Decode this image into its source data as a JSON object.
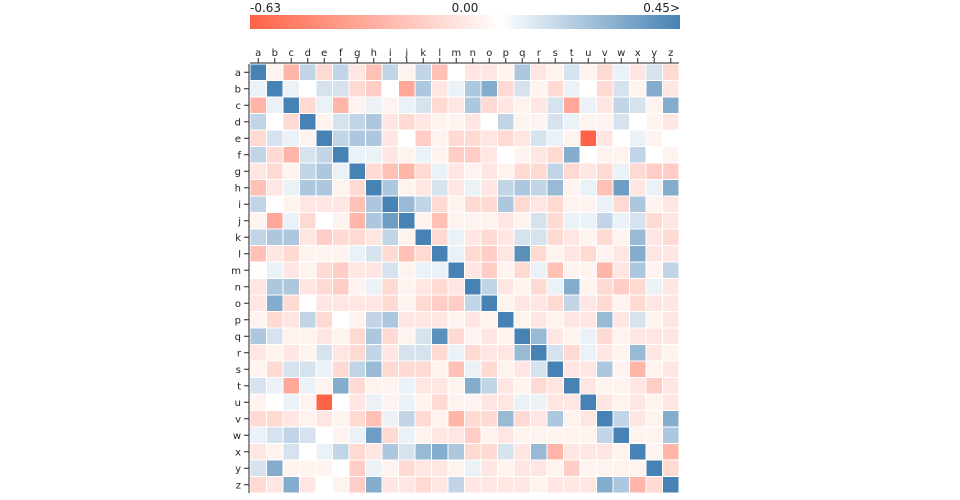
{
  "chart_data": {
    "type": "heatmap",
    "legend": {
      "min_label": "-0.63",
      "mid_label": "0.00",
      "max_label": "0.45>",
      "min": -0.63,
      "max": 0.45
    },
    "colors": {
      "negative": "#ff6347",
      "zero": "#ffffff",
      "positive": "#4682b4",
      "cell_border": "#ffffff",
      "axis": "#222222"
    },
    "x_labels": [
      "a",
      "b",
      "c",
      "d",
      "e",
      "f",
      "g",
      "h",
      "i",
      "j",
      "k",
      "l",
      "m",
      "n",
      "o",
      "p",
      "q",
      "r",
      "s",
      "t",
      "u",
      "v",
      "w",
      "x",
      "y",
      "z"
    ],
    "y_labels": [
      "a",
      "b",
      "c",
      "d",
      "e",
      "f",
      "g",
      "h",
      "i",
      "j",
      "k",
      "l",
      "m",
      "n",
      "o",
      "p",
      "q",
      "r",
      "s",
      "t",
      "u",
      "v",
      "w",
      "x",
      "y",
      "z"
    ],
    "values": [
      [
        0.45,
        -0.05,
        -0.3,
        0.15,
        -0.15,
        0.15,
        -0.1,
        -0.25,
        0.15,
        -0.05,
        0.15,
        -0.25,
        0.0,
        -0.1,
        -0.1,
        -0.05,
        0.2,
        -0.1,
        -0.05,
        0.1,
        -0.05,
        -0.15,
        0.05,
        -0.1,
        0.1,
        -0.15
      ],
      [
        0.05,
        0.45,
        0.05,
        0.0,
        0.1,
        0.1,
        -0.15,
        -0.2,
        0.0,
        -0.35,
        0.2,
        -0.1,
        0.05,
        0.2,
        0.3,
        -0.15,
        0.1,
        -0.05,
        -0.15,
        0.05,
        0.0,
        -0.15,
        0.1,
        -0.05,
        0.3,
        -0.1
      ],
      [
        -0.3,
        0.05,
        0.45,
        -0.15,
        0.05,
        -0.3,
        -0.05,
        0.05,
        -0.05,
        0.05,
        0.1,
        -0.15,
        -0.1,
        0.2,
        -0.15,
        -0.1,
        -0.05,
        -0.1,
        0.1,
        -0.35,
        0.05,
        -0.1,
        0.15,
        0.1,
        -0.05,
        0.3
      ],
      [
        0.15,
        0.0,
        -0.15,
        0.45,
        -0.05,
        0.1,
        0.15,
        0.2,
        -0.1,
        -0.15,
        -0.1,
        -0.05,
        -0.05,
        -0.1,
        0.0,
        0.15,
        -0.05,
        -0.05,
        0.1,
        0.05,
        -0.05,
        -0.05,
        0.1,
        0.0,
        -0.05,
        -0.1
      ],
      [
        -0.15,
        0.1,
        0.05,
        -0.05,
        0.45,
        0.15,
        0.2,
        0.2,
        -0.1,
        0.0,
        -0.2,
        -0.05,
        -0.15,
        -0.15,
        -0.1,
        -0.15,
        -0.1,
        0.1,
        0.05,
        -0.05,
        -0.63,
        -0.1,
        0.0,
        0.05,
        -0.05,
        0.0
      ],
      [
        0.15,
        -0.15,
        -0.3,
        0.1,
        0.15,
        0.45,
        0.05,
        0.05,
        -0.1,
        -0.05,
        0.05,
        -0.05,
        -0.2,
        -0.2,
        -0.1,
        0.0,
        -0.05,
        -0.1,
        -0.15,
        0.3,
        0.0,
        -0.05,
        -0.05,
        0.15,
        0.0,
        -0.05
      ],
      [
        -0.1,
        -0.15,
        -0.05,
        0.15,
        0.2,
        0.05,
        0.45,
        -0.15,
        -0.25,
        -0.3,
        -0.15,
        0.05,
        -0.1,
        -0.05,
        -0.1,
        -0.05,
        -0.15,
        -0.15,
        0.15,
        -0.15,
        -0.1,
        -0.15,
        0.05,
        -0.15,
        -0.2,
        -0.2
      ],
      [
        -0.25,
        -0.1,
        0.05,
        0.2,
        0.2,
        -0.05,
        -0.15,
        0.45,
        0.2,
        -0.05,
        -0.1,
        0.1,
        -0.1,
        0.05,
        -0.1,
        0.15,
        0.2,
        0.15,
        0.25,
        -0.05,
        0.05,
        -0.25,
        0.35,
        -0.1,
        0.05,
        0.3
      ],
      [
        0.15,
        0.0,
        -0.05,
        -0.1,
        -0.1,
        -0.1,
        -0.25,
        0.2,
        0.45,
        0.25,
        0.15,
        -0.15,
        -0.05,
        -0.15,
        -0.15,
        0.2,
        -0.15,
        -0.1,
        -0.15,
        -0.05,
        -0.05,
        0.05,
        -0.15,
        0.2,
        -0.05,
        -0.1
      ],
      [
        -0.05,
        -0.35,
        0.05,
        -0.15,
        0.0,
        -0.05,
        -0.3,
        0.2,
        0.35,
        0.45,
        -0.05,
        -0.25,
        -0.05,
        -0.05,
        -0.05,
        -0.1,
        -0.05,
        0.1,
        -0.15,
        0.05,
        0.05,
        0.15,
        0.05,
        0.1,
        -0.15,
        -0.1
      ],
      [
        0.15,
        0.2,
        0.2,
        -0.1,
        -0.2,
        -0.15,
        -0.15,
        -0.1,
        0.15,
        -0.05,
        0.45,
        -0.15,
        0.05,
        -0.1,
        -0.15,
        -0.1,
        0.1,
        0.1,
        -0.15,
        -0.1,
        -0.05,
        -0.15,
        -0.05,
        0.25,
        -0.1,
        -0.15
      ],
      [
        -0.25,
        -0.1,
        -0.15,
        -0.05,
        -0.05,
        -0.05,
        0.05,
        0.1,
        -0.15,
        -0.25,
        -0.15,
        0.45,
        0.05,
        -0.15,
        -0.2,
        -0.1,
        0.4,
        -0.15,
        -0.05,
        -0.1,
        -0.15,
        -0.05,
        -0.1,
        0.3,
        -0.1,
        -0.1
      ],
      [
        0.0,
        0.05,
        -0.1,
        -0.05,
        -0.15,
        -0.2,
        -0.1,
        -0.1,
        0.1,
        -0.05,
        0.05,
        0.05,
        0.45,
        -0.1,
        -0.2,
        -0.05,
        -0.15,
        0.05,
        -0.25,
        -0.05,
        -0.05,
        -0.3,
        -0.1,
        0.2,
        -0.05,
        0.15
      ],
      [
        -0.1,
        0.2,
        0.2,
        -0.1,
        -0.15,
        -0.2,
        -0.05,
        0.05,
        -0.15,
        -0.05,
        -0.1,
        -0.15,
        -0.1,
        0.45,
        0.15,
        -0.1,
        -0.05,
        -0.15,
        0.05,
        0.3,
        -0.05,
        -0.15,
        -0.2,
        -0.15,
        0.05,
        -0.1
      ],
      [
        -0.1,
        0.3,
        -0.15,
        0.0,
        -0.1,
        -0.1,
        -0.1,
        -0.1,
        -0.15,
        -0.05,
        -0.15,
        -0.2,
        -0.2,
        0.15,
        0.45,
        -0.05,
        -0.1,
        -0.1,
        -0.15,
        0.15,
        -0.1,
        -0.15,
        -0.05,
        -0.15,
        -0.1,
        -0.1
      ],
      [
        -0.05,
        -0.15,
        -0.1,
        0.15,
        -0.15,
        0.0,
        -0.05,
        0.15,
        0.2,
        -0.1,
        -0.1,
        -0.1,
        -0.05,
        -0.1,
        -0.05,
        0.45,
        -0.05,
        -0.1,
        -0.05,
        -0.1,
        -0.1,
        0.25,
        -0.1,
        0.1,
        -0.05,
        -0.1
      ],
      [
        0.2,
        0.1,
        -0.05,
        -0.05,
        -0.1,
        -0.05,
        -0.15,
        0.2,
        -0.15,
        -0.05,
        0.1,
        0.4,
        -0.15,
        -0.05,
        -0.1,
        -0.05,
        0.45,
        0.25,
        -0.1,
        -0.05,
        0.05,
        -0.15,
        -0.05,
        -0.1,
        -0.1,
        -0.1
      ],
      [
        -0.1,
        -0.05,
        -0.1,
        -0.05,
        0.1,
        -0.1,
        -0.15,
        0.15,
        -0.1,
        0.1,
        0.1,
        -0.15,
        0.05,
        -0.15,
        -0.1,
        -0.1,
        0.25,
        0.45,
        0.1,
        -0.15,
        0.05,
        -0.1,
        -0.05,
        0.25,
        -0.1,
        -0.05
      ],
      [
        -0.05,
        -0.15,
        0.1,
        0.1,
        0.05,
        -0.15,
        0.15,
        0.25,
        -0.15,
        -0.15,
        -0.15,
        -0.05,
        -0.25,
        0.05,
        -0.15,
        -0.05,
        -0.1,
        0.1,
        0.45,
        -0.1,
        -0.1,
        0.2,
        -0.05,
        -0.3,
        -0.05,
        -0.1
      ],
      [
        0.1,
        0.05,
        -0.35,
        0.05,
        -0.05,
        0.3,
        -0.15,
        -0.05,
        -0.05,
        0.05,
        -0.1,
        -0.1,
        -0.05,
        0.3,
        0.15,
        -0.1,
        -0.05,
        -0.15,
        -0.1,
        0.45,
        -0.1,
        -0.05,
        -0.05,
        -0.1,
        -0.2,
        -0.1
      ],
      [
        -0.05,
        0.0,
        0.05,
        -0.05,
        -0.63,
        0.0,
        -0.1,
        0.05,
        -0.05,
        0.05,
        -0.05,
        -0.15,
        -0.05,
        -0.05,
        -0.1,
        -0.1,
        0.05,
        0.05,
        -0.1,
        -0.1,
        0.45,
        -0.1,
        -0.05,
        -0.1,
        -0.05,
        -0.1
      ],
      [
        -0.15,
        -0.15,
        -0.1,
        -0.05,
        -0.1,
        -0.05,
        -0.15,
        -0.25,
        0.05,
        0.15,
        -0.15,
        -0.05,
        -0.3,
        -0.15,
        -0.15,
        0.25,
        -0.15,
        -0.1,
        0.2,
        -0.05,
        -0.1,
        0.45,
        0.15,
        -0.1,
        -0.05,
        0.3
      ],
      [
        0.05,
        0.1,
        0.15,
        0.1,
        0.0,
        -0.05,
        0.05,
        0.35,
        -0.15,
        0.05,
        -0.05,
        -0.1,
        -0.1,
        -0.2,
        -0.05,
        -0.1,
        -0.05,
        -0.05,
        -0.05,
        -0.05,
        -0.05,
        0.15,
        0.45,
        -0.05,
        -0.05,
        0.2
      ],
      [
        -0.1,
        -0.05,
        0.1,
        0.0,
        0.05,
        0.15,
        -0.15,
        -0.1,
        0.2,
        0.1,
        0.25,
        0.3,
        0.2,
        -0.15,
        -0.15,
        0.1,
        -0.1,
        0.25,
        -0.3,
        -0.1,
        -0.1,
        -0.1,
        -0.05,
        0.45,
        -0.05,
        -0.3
      ],
      [
        0.1,
        0.3,
        -0.05,
        -0.05,
        -0.05,
        0.0,
        -0.2,
        0.05,
        -0.05,
        -0.15,
        -0.1,
        -0.1,
        -0.05,
        0.05,
        -0.1,
        -0.05,
        -0.1,
        -0.1,
        -0.05,
        -0.2,
        -0.05,
        -0.05,
        -0.05,
        -0.05,
        0.45,
        -0.15
      ],
      [
        -0.15,
        -0.1,
        0.3,
        -0.1,
        0.0,
        -0.05,
        -0.2,
        0.3,
        -0.1,
        -0.1,
        -0.15,
        -0.1,
        0.15,
        -0.1,
        -0.1,
        -0.1,
        -0.1,
        -0.05,
        -0.1,
        -0.1,
        -0.1,
        0.3,
        0.2,
        -0.3,
        -0.15,
        0.45
      ]
    ]
  }
}
